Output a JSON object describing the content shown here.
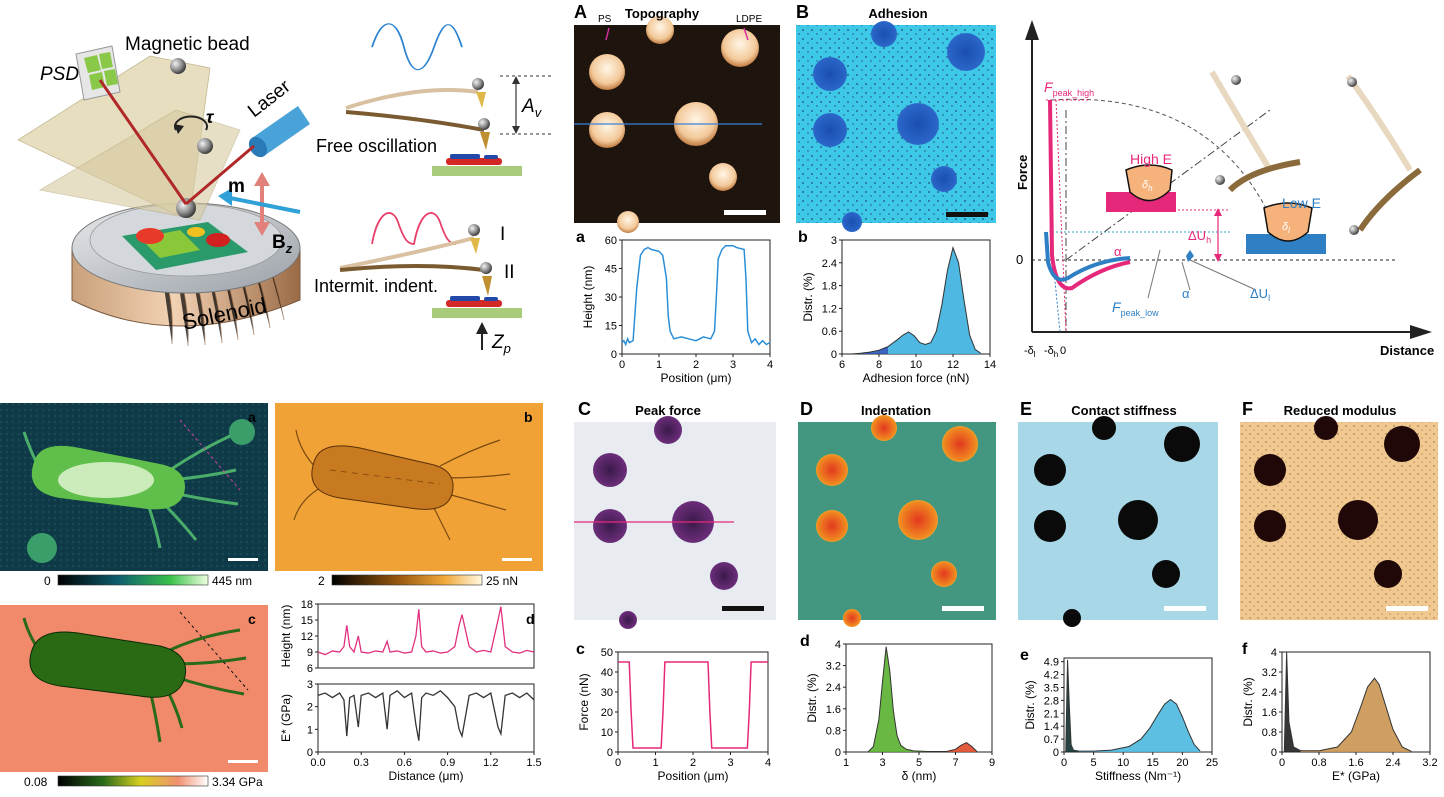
{
  "schematic": {
    "psd": "PSD",
    "magnetic_bead": "Magnetic bead",
    "tau": "τ",
    "laser": "Laser",
    "m": "m",
    "bz": "B",
    "bz_sub": "z",
    "solenoid": "Solenoid",
    "free_oscillation": "Free oscillation",
    "av": "A",
    "av_sub": "v",
    "intermit": "Intermit. indent.",
    "roman1": "I",
    "roman2": "II",
    "zp": "Z",
    "zp_sub": "p"
  },
  "maps_top": {
    "A": {
      "letter": "A",
      "title": "Topography",
      "ps": "PS",
      "ldpe": "LDPE"
    },
    "B": {
      "letter": "B",
      "title": "Adhesion"
    }
  },
  "maps_bottom": {
    "C": {
      "letter": "C",
      "title": "Peak force"
    },
    "D": {
      "letter": "D",
      "title": "Indentation"
    },
    "E": {
      "letter": "E",
      "title": "Contact stiffness"
    },
    "F": {
      "letter": "F",
      "title": "Reduced modulus"
    }
  },
  "bacteria": {
    "a": "a",
    "b": "b",
    "c": "c",
    "scale_a_min": "0",
    "scale_a_max": "445 nm",
    "scale_b_min": "2",
    "scale_b_max": "25 nN",
    "scale_c_min": "0.08",
    "scale_c_max": "3.34 GPa"
  },
  "force_curve": {
    "ylabel": "Force",
    "xlabel": "Distance",
    "zero": "0",
    "fpeak_high": "F",
    "fpeak_high_sub": "peak_high",
    "fpeak_low": "F",
    "fpeak_low_sub": "peak_low",
    "alpha": "α",
    "du_h": "ΔU",
    "du_h_sub": "h",
    "du_l": "ΔU",
    "du_l_sub": "l",
    "high_e": "High E",
    "low_e": "Low E",
    "delta_h": "δ",
    "delta_h_sub": "h",
    "delta_l": "δ",
    "delta_l_sub": "l",
    "x_neg_l": "-δ",
    "x_neg_l_sub": "l",
    "x_neg_h": "-δ",
    "x_neg_h_sub": "h",
    "x_zero": "0",
    "colors": {
      "high": "#e6287a",
      "low": "#2e7fc4"
    }
  },
  "chart_data": [
    {
      "id": "a",
      "letter": "a",
      "type": "line",
      "xlabel": "Position (μm)",
      "ylabel": "Height (nm)",
      "xlim": [
        0,
        4
      ],
      "ylim": [
        0,
        60
      ],
      "xticks": [
        0,
        1,
        2,
        3,
        4
      ],
      "yticks": [
        0,
        15,
        30,
        45,
        60
      ],
      "color": "#2a8fd8",
      "x": [
        0,
        0.05,
        0.1,
        0.15,
        0.2,
        0.3,
        0.4,
        0.5,
        0.6,
        0.7,
        0.8,
        1.0,
        1.1,
        1.2,
        1.25,
        1.3,
        1.4,
        1.6,
        1.8,
        2.0,
        2.2,
        2.4,
        2.5,
        2.55,
        2.6,
        2.7,
        2.8,
        3.0,
        3.1,
        3.3,
        3.35,
        3.4,
        3.5,
        3.6,
        3.7,
        3.8,
        3.9,
        4.0
      ],
      "y": [
        6,
        7,
        5,
        8,
        6,
        7,
        35,
        52,
        55,
        56,
        55,
        54,
        52,
        40,
        20,
        12,
        8,
        9,
        8,
        7,
        9,
        8,
        12,
        30,
        50,
        55,
        57,
        57,
        56,
        55,
        40,
        12,
        6,
        8,
        5,
        7,
        5,
        6
      ]
    },
    {
      "id": "b",
      "letter": "b",
      "type": "area",
      "xlabel": "Adhesion force (nN)",
      "ylabel": "Distr. (%)",
      "xlim": [
        6,
        14
      ],
      "ylim": [
        0,
        3.0
      ],
      "xticks": [
        6,
        8,
        10,
        12,
        14
      ],
      "yticks": [
        0.0,
        0.6,
        1.2,
        1.8,
        2.4,
        3.0
      ],
      "color": "#3bb0e0",
      "color2": "#2653b8",
      "x": [
        6.5,
        7,
        7.5,
        8,
        8.5,
        9,
        9.3,
        9.6,
        9.9,
        10.2,
        10.5,
        10.8,
        11.1,
        11.4,
        11.7,
        12.0,
        12.3,
        12.6,
        12.9,
        13.2,
        13.5
      ],
      "y": [
        0,
        0.02,
        0.05,
        0.1,
        0.2,
        0.38,
        0.5,
        0.58,
        0.48,
        0.3,
        0.25,
        0.3,
        0.6,
        1.3,
        2.2,
        2.8,
        2.4,
        1.4,
        0.5,
        0.12,
        0.02
      ]
    },
    {
      "id": "c",
      "letter": "c",
      "type": "line",
      "xlabel": "Position (μm)",
      "ylabel": "Force (nN)",
      "xlim": [
        0,
        4
      ],
      "ylim": [
        0,
        50
      ],
      "xticks": [
        0,
        1,
        2,
        3,
        4
      ],
      "yticks": [
        0,
        10,
        20,
        30,
        40,
        50
      ],
      "color": "#e6287a",
      "x": [
        0,
        0.3,
        0.35,
        0.4,
        0.8,
        1.15,
        1.2,
        1.25,
        1.6,
        2.0,
        2.4,
        2.45,
        2.5,
        3.0,
        3.45,
        3.5,
        3.55,
        4.0
      ],
      "y": [
        45,
        45,
        20,
        2,
        2,
        2,
        20,
        45,
        45,
        45,
        45,
        20,
        2,
        2,
        2,
        20,
        45,
        45
      ]
    },
    {
      "id": "d",
      "letter": "d",
      "type": "area",
      "xlabel": "δ (nm)",
      "ylabel": "Distr. (%)",
      "xlim": [
        1,
        9
      ],
      "ylim": [
        0,
        4.0
      ],
      "xticks": [
        1,
        3,
        5,
        7,
        9
      ],
      "yticks": [
        0.0,
        0.8,
        1.6,
        2.4,
        3.2,
        4.0
      ],
      "color": "#5ab030",
      "color2": "#e04a2a",
      "x": [
        2.2,
        2.5,
        2.8,
        3.0,
        3.2,
        3.4,
        3.6,
        3.8,
        4.0,
        4.3,
        4.7,
        5.5,
        6.5,
        7.0,
        7.3,
        7.6,
        7.9,
        8.2
      ],
      "y": [
        0,
        0.2,
        1.2,
        2.6,
        3.9,
        3.0,
        1.5,
        0.6,
        0.25,
        0.1,
        0.04,
        0.02,
        0.02,
        0.1,
        0.25,
        0.35,
        0.2,
        0
      ]
    },
    {
      "id": "e",
      "letter": "e",
      "type": "area",
      "xlabel": "Stiffness (Nm⁻¹)",
      "ylabel": "Distr. (%)",
      "xlim": [
        0,
        25
      ],
      "ylim": [
        0,
        5.1
      ],
      "xticks": [
        0,
        5,
        10,
        15,
        20,
        25
      ],
      "yticks": [
        0.0,
        0.7,
        1.4,
        2.1,
        2.8,
        3.5,
        4.2,
        4.9
      ],
      "color": "#4bb8de",
      "color2": "#10302f",
      "x": [
        0.3,
        0.6,
        0.9,
        1.2,
        1.6,
        2.5,
        5,
        8,
        11,
        13,
        14.5,
        16,
        17,
        18,
        19,
        20,
        21,
        22,
        23
      ],
      "y": [
        0,
        5.0,
        2.5,
        0.4,
        0.1,
        0.05,
        0.05,
        0.1,
        0.3,
        0.7,
        1.3,
        2.1,
        2.6,
        2.85,
        2.6,
        1.9,
        1.1,
        0.4,
        0.05
      ]
    },
    {
      "id": "f",
      "letter": "f",
      "type": "area",
      "xlabel": "E* (GPa)",
      "ylabel": "Distr. (%)",
      "xlim": [
        0,
        3.2
      ],
      "ylim": [
        0,
        4.0
      ],
      "xticks": [
        0.0,
        0.8,
        1.6,
        2.4,
        3.2
      ],
      "yticks": [
        0.0,
        0.8,
        1.6,
        2.4,
        3.2,
        4.0
      ],
      "color": "#c99550",
      "color2": "#202020",
      "x": [
        0.05,
        0.1,
        0.15,
        0.25,
        0.4,
        0.8,
        1.2,
        1.5,
        1.7,
        1.85,
        2.0,
        2.1,
        2.2,
        2.4,
        2.6,
        2.8
      ],
      "y": [
        0,
        4.0,
        1.2,
        0.2,
        0.05,
        0.05,
        0.2,
        0.8,
        1.8,
        2.6,
        2.95,
        2.7,
        2.1,
        0.9,
        0.2,
        0.02
      ]
    },
    {
      "id": "d2",
      "letter": "d",
      "type": "line",
      "xlabel": "Distance (μm)",
      "ylabel_top": "Height (nm)",
      "ylabel_bottom": "E* (GPa)",
      "xlim": [
        0,
        1.5
      ],
      "xticks": [
        0.0,
        0.3,
        0.6,
        0.9,
        1.2,
        1.5
      ],
      "top": {
        "ylim": [
          6,
          18
        ],
        "yticks": [
          6,
          9,
          12,
          15,
          18
        ],
        "color": "#e0307f",
        "x": [
          0,
          0.05,
          0.1,
          0.15,
          0.18,
          0.2,
          0.22,
          0.25,
          0.28,
          0.3,
          0.35,
          0.4,
          0.45,
          0.48,
          0.5,
          0.55,
          0.6,
          0.65,
          0.68,
          0.7,
          0.72,
          0.75,
          0.8,
          0.85,
          0.9,
          0.95,
          0.98,
          1.0,
          1.05,
          1.1,
          1.15,
          1.2,
          1.25,
          1.27,
          1.3,
          1.35,
          1.4,
          1.45,
          1.5
        ],
        "y": [
          9,
          8.5,
          9.2,
          9,
          10,
          14,
          10,
          9,
          12,
          9,
          8.8,
          9.2,
          9,
          11,
          9,
          9.2,
          8.8,
          9,
          12,
          17,
          10,
          9,
          9.2,
          8.8,
          9,
          10,
          14,
          16,
          10,
          9,
          9.3,
          9,
          15,
          17.5,
          10,
          9,
          8.8,
          9.3,
          9
        ]
      },
      "bottom": {
        "ylim": [
          0,
          3
        ],
        "yticks": [
          0,
          1,
          2,
          3
        ],
        "color": "#333333",
        "x": [
          0,
          0.05,
          0.1,
          0.15,
          0.18,
          0.2,
          0.22,
          0.25,
          0.28,
          0.3,
          0.35,
          0.4,
          0.45,
          0.48,
          0.5,
          0.55,
          0.6,
          0.65,
          0.68,
          0.7,
          0.72,
          0.75,
          0.8,
          0.85,
          0.9,
          0.95,
          0.98,
          1.0,
          1.05,
          1.1,
          1.15,
          1.2,
          1.25,
          1.27,
          1.3,
          1.35,
          1.4,
          1.45,
          1.5
        ],
        "y": [
          2.5,
          2.6,
          2.4,
          2.6,
          2.3,
          0.7,
          2.4,
          2.5,
          1.1,
          2.5,
          2.6,
          2.4,
          2.6,
          1.0,
          2.5,
          2.7,
          2.4,
          2.6,
          1.2,
          0.5,
          2.4,
          2.6,
          2.5,
          2.7,
          2.4,
          2.0,
          1.0,
          0.7,
          2.5,
          2.6,
          2.4,
          2.6,
          1.1,
          0.8,
          2.5,
          2.6,
          2.4,
          2.6,
          2.3
        ]
      }
    }
  ]
}
